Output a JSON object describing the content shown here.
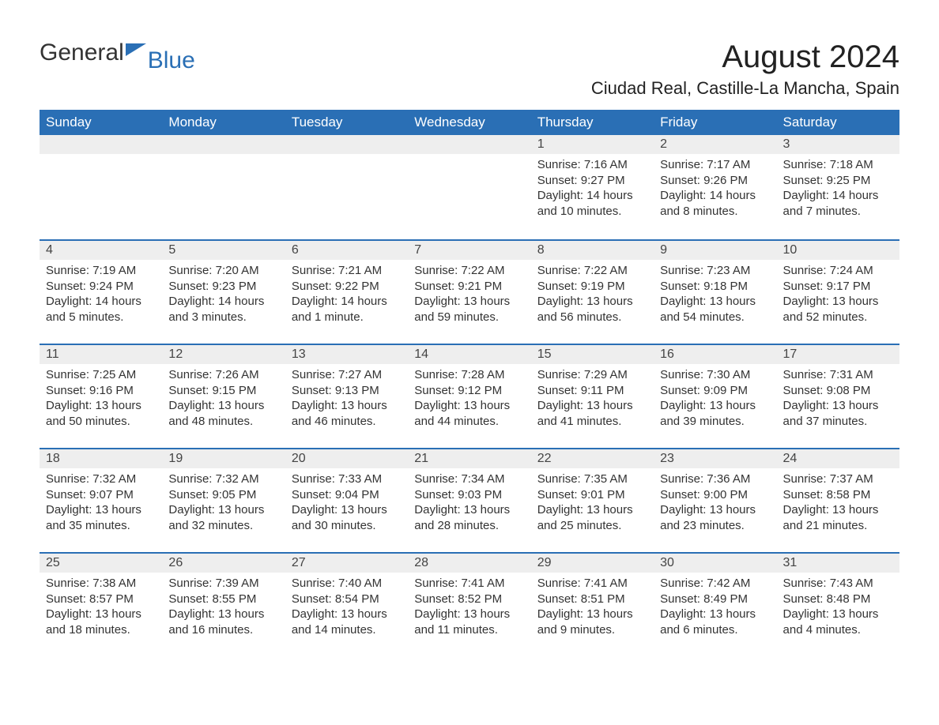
{
  "logo": {
    "word1": "General",
    "word2": "Blue"
  },
  "title": "August 2024",
  "subtitle": "Ciudad Real, Castille-La Mancha, Spain",
  "colors": {
    "header_bg": "#2a6fb5",
    "header_text": "#ffffff",
    "daynum_bg": "#eeeeee",
    "daynum_border": "#2a6fb5",
    "body_text": "#333333",
    "page_bg": "#ffffff"
  },
  "fonts": {
    "title_size_pt": 30,
    "subtitle_size_pt": 17,
    "header_size_pt": 13,
    "cell_size_pt": 11
  },
  "daynames": [
    "Sunday",
    "Monday",
    "Tuesday",
    "Wednesday",
    "Thursday",
    "Friday",
    "Saturday"
  ],
  "weeks": [
    [
      null,
      null,
      null,
      null,
      {
        "day": "1",
        "sunrise": "Sunrise: 7:16 AM",
        "sunset": "Sunset: 9:27 PM",
        "daylight": "Daylight: 14 hours and 10 minutes."
      },
      {
        "day": "2",
        "sunrise": "Sunrise: 7:17 AM",
        "sunset": "Sunset: 9:26 PM",
        "daylight": "Daylight: 14 hours and 8 minutes."
      },
      {
        "day": "3",
        "sunrise": "Sunrise: 7:18 AM",
        "sunset": "Sunset: 9:25 PM",
        "daylight": "Daylight: 14 hours and 7 minutes."
      }
    ],
    [
      {
        "day": "4",
        "sunrise": "Sunrise: 7:19 AM",
        "sunset": "Sunset: 9:24 PM",
        "daylight": "Daylight: 14 hours and 5 minutes."
      },
      {
        "day": "5",
        "sunrise": "Sunrise: 7:20 AM",
        "sunset": "Sunset: 9:23 PM",
        "daylight": "Daylight: 14 hours and 3 minutes."
      },
      {
        "day": "6",
        "sunrise": "Sunrise: 7:21 AM",
        "sunset": "Sunset: 9:22 PM",
        "daylight": "Daylight: 14 hours and 1 minute."
      },
      {
        "day": "7",
        "sunrise": "Sunrise: 7:22 AM",
        "sunset": "Sunset: 9:21 PM",
        "daylight": "Daylight: 13 hours and 59 minutes."
      },
      {
        "day": "8",
        "sunrise": "Sunrise: 7:22 AM",
        "sunset": "Sunset: 9:19 PM",
        "daylight": "Daylight: 13 hours and 56 minutes."
      },
      {
        "day": "9",
        "sunrise": "Sunrise: 7:23 AM",
        "sunset": "Sunset: 9:18 PM",
        "daylight": "Daylight: 13 hours and 54 minutes."
      },
      {
        "day": "10",
        "sunrise": "Sunrise: 7:24 AM",
        "sunset": "Sunset: 9:17 PM",
        "daylight": "Daylight: 13 hours and 52 minutes."
      }
    ],
    [
      {
        "day": "11",
        "sunrise": "Sunrise: 7:25 AM",
        "sunset": "Sunset: 9:16 PM",
        "daylight": "Daylight: 13 hours and 50 minutes."
      },
      {
        "day": "12",
        "sunrise": "Sunrise: 7:26 AM",
        "sunset": "Sunset: 9:15 PM",
        "daylight": "Daylight: 13 hours and 48 minutes."
      },
      {
        "day": "13",
        "sunrise": "Sunrise: 7:27 AM",
        "sunset": "Sunset: 9:13 PM",
        "daylight": "Daylight: 13 hours and 46 minutes."
      },
      {
        "day": "14",
        "sunrise": "Sunrise: 7:28 AM",
        "sunset": "Sunset: 9:12 PM",
        "daylight": "Daylight: 13 hours and 44 minutes."
      },
      {
        "day": "15",
        "sunrise": "Sunrise: 7:29 AM",
        "sunset": "Sunset: 9:11 PM",
        "daylight": "Daylight: 13 hours and 41 minutes."
      },
      {
        "day": "16",
        "sunrise": "Sunrise: 7:30 AM",
        "sunset": "Sunset: 9:09 PM",
        "daylight": "Daylight: 13 hours and 39 minutes."
      },
      {
        "day": "17",
        "sunrise": "Sunrise: 7:31 AM",
        "sunset": "Sunset: 9:08 PM",
        "daylight": "Daylight: 13 hours and 37 minutes."
      }
    ],
    [
      {
        "day": "18",
        "sunrise": "Sunrise: 7:32 AM",
        "sunset": "Sunset: 9:07 PM",
        "daylight": "Daylight: 13 hours and 35 minutes."
      },
      {
        "day": "19",
        "sunrise": "Sunrise: 7:32 AM",
        "sunset": "Sunset: 9:05 PM",
        "daylight": "Daylight: 13 hours and 32 minutes."
      },
      {
        "day": "20",
        "sunrise": "Sunrise: 7:33 AM",
        "sunset": "Sunset: 9:04 PM",
        "daylight": "Daylight: 13 hours and 30 minutes."
      },
      {
        "day": "21",
        "sunrise": "Sunrise: 7:34 AM",
        "sunset": "Sunset: 9:03 PM",
        "daylight": "Daylight: 13 hours and 28 minutes."
      },
      {
        "day": "22",
        "sunrise": "Sunrise: 7:35 AM",
        "sunset": "Sunset: 9:01 PM",
        "daylight": "Daylight: 13 hours and 25 minutes."
      },
      {
        "day": "23",
        "sunrise": "Sunrise: 7:36 AM",
        "sunset": "Sunset: 9:00 PM",
        "daylight": "Daylight: 13 hours and 23 minutes."
      },
      {
        "day": "24",
        "sunrise": "Sunrise: 7:37 AM",
        "sunset": "Sunset: 8:58 PM",
        "daylight": "Daylight: 13 hours and 21 minutes."
      }
    ],
    [
      {
        "day": "25",
        "sunrise": "Sunrise: 7:38 AM",
        "sunset": "Sunset: 8:57 PM",
        "daylight": "Daylight: 13 hours and 18 minutes."
      },
      {
        "day": "26",
        "sunrise": "Sunrise: 7:39 AM",
        "sunset": "Sunset: 8:55 PM",
        "daylight": "Daylight: 13 hours and 16 minutes."
      },
      {
        "day": "27",
        "sunrise": "Sunrise: 7:40 AM",
        "sunset": "Sunset: 8:54 PM",
        "daylight": "Daylight: 13 hours and 14 minutes."
      },
      {
        "day": "28",
        "sunrise": "Sunrise: 7:41 AM",
        "sunset": "Sunset: 8:52 PM",
        "daylight": "Daylight: 13 hours and 11 minutes."
      },
      {
        "day": "29",
        "sunrise": "Sunrise: 7:41 AM",
        "sunset": "Sunset: 8:51 PM",
        "daylight": "Daylight: 13 hours and 9 minutes."
      },
      {
        "day": "30",
        "sunrise": "Sunrise: 7:42 AM",
        "sunset": "Sunset: 8:49 PM",
        "daylight": "Daylight: 13 hours and 6 minutes."
      },
      {
        "day": "31",
        "sunrise": "Sunrise: 7:43 AM",
        "sunset": "Sunset: 8:48 PM",
        "daylight": "Daylight: 13 hours and 4 minutes."
      }
    ]
  ]
}
